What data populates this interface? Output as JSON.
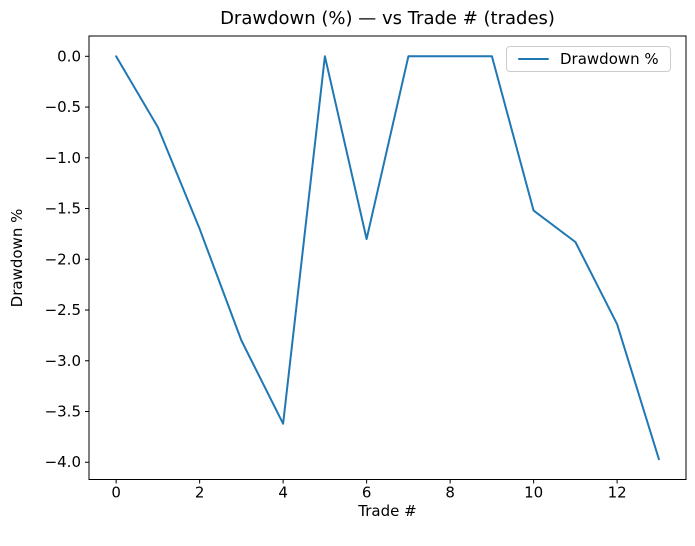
{
  "figure": {
    "title": "Drawdown (%) — vs Trade # (trades)"
  },
  "chart_data": {
    "type": "line",
    "title": "Drawdown (%) — vs Trade # (trades)",
    "xlabel": "Trade #",
    "ylabel": "Drawdown %",
    "x": [
      0,
      1,
      2,
      3,
      4,
      5,
      6,
      7,
      8,
      9,
      10,
      11,
      12,
      13
    ],
    "series": [
      {
        "name": "Drawdown %",
        "values": [
          0.0,
          -0.7,
          -1.7,
          -2.8,
          -3.62,
          0.0,
          -1.8,
          0.0,
          0.0,
          0.0,
          -1.52,
          -1.83,
          -2.64,
          -3.97
        ],
        "color": "#1f77b4"
      }
    ],
    "xlim": [
      -0.65,
      13.65
    ],
    "ylim": [
      -4.17,
      0.2
    ],
    "xticks": {
      "values": [
        0,
        2,
        4,
        6,
        8,
        10,
        12
      ],
      "labels": [
        "0",
        "2",
        "4",
        "6",
        "8",
        "10",
        "12"
      ]
    },
    "yticks": {
      "values": [
        0.0,
        -0.5,
        -1.0,
        -1.5,
        -2.0,
        -2.5,
        -3.0,
        -3.5,
        -4.0
      ],
      "labels": [
        "0.0",
        "−0.5",
        "−1.0",
        "−1.5",
        "−2.0",
        "−2.5",
        "−3.0",
        "−3.5",
        "−4.0"
      ]
    },
    "legend": {
      "position": "upper right",
      "entries": [
        "Drawdown %"
      ]
    },
    "grid": false
  },
  "colors": {
    "line": "#1f77b4",
    "axis": "#000000",
    "legend_border": "#cccccc",
    "background": "#ffffff"
  }
}
